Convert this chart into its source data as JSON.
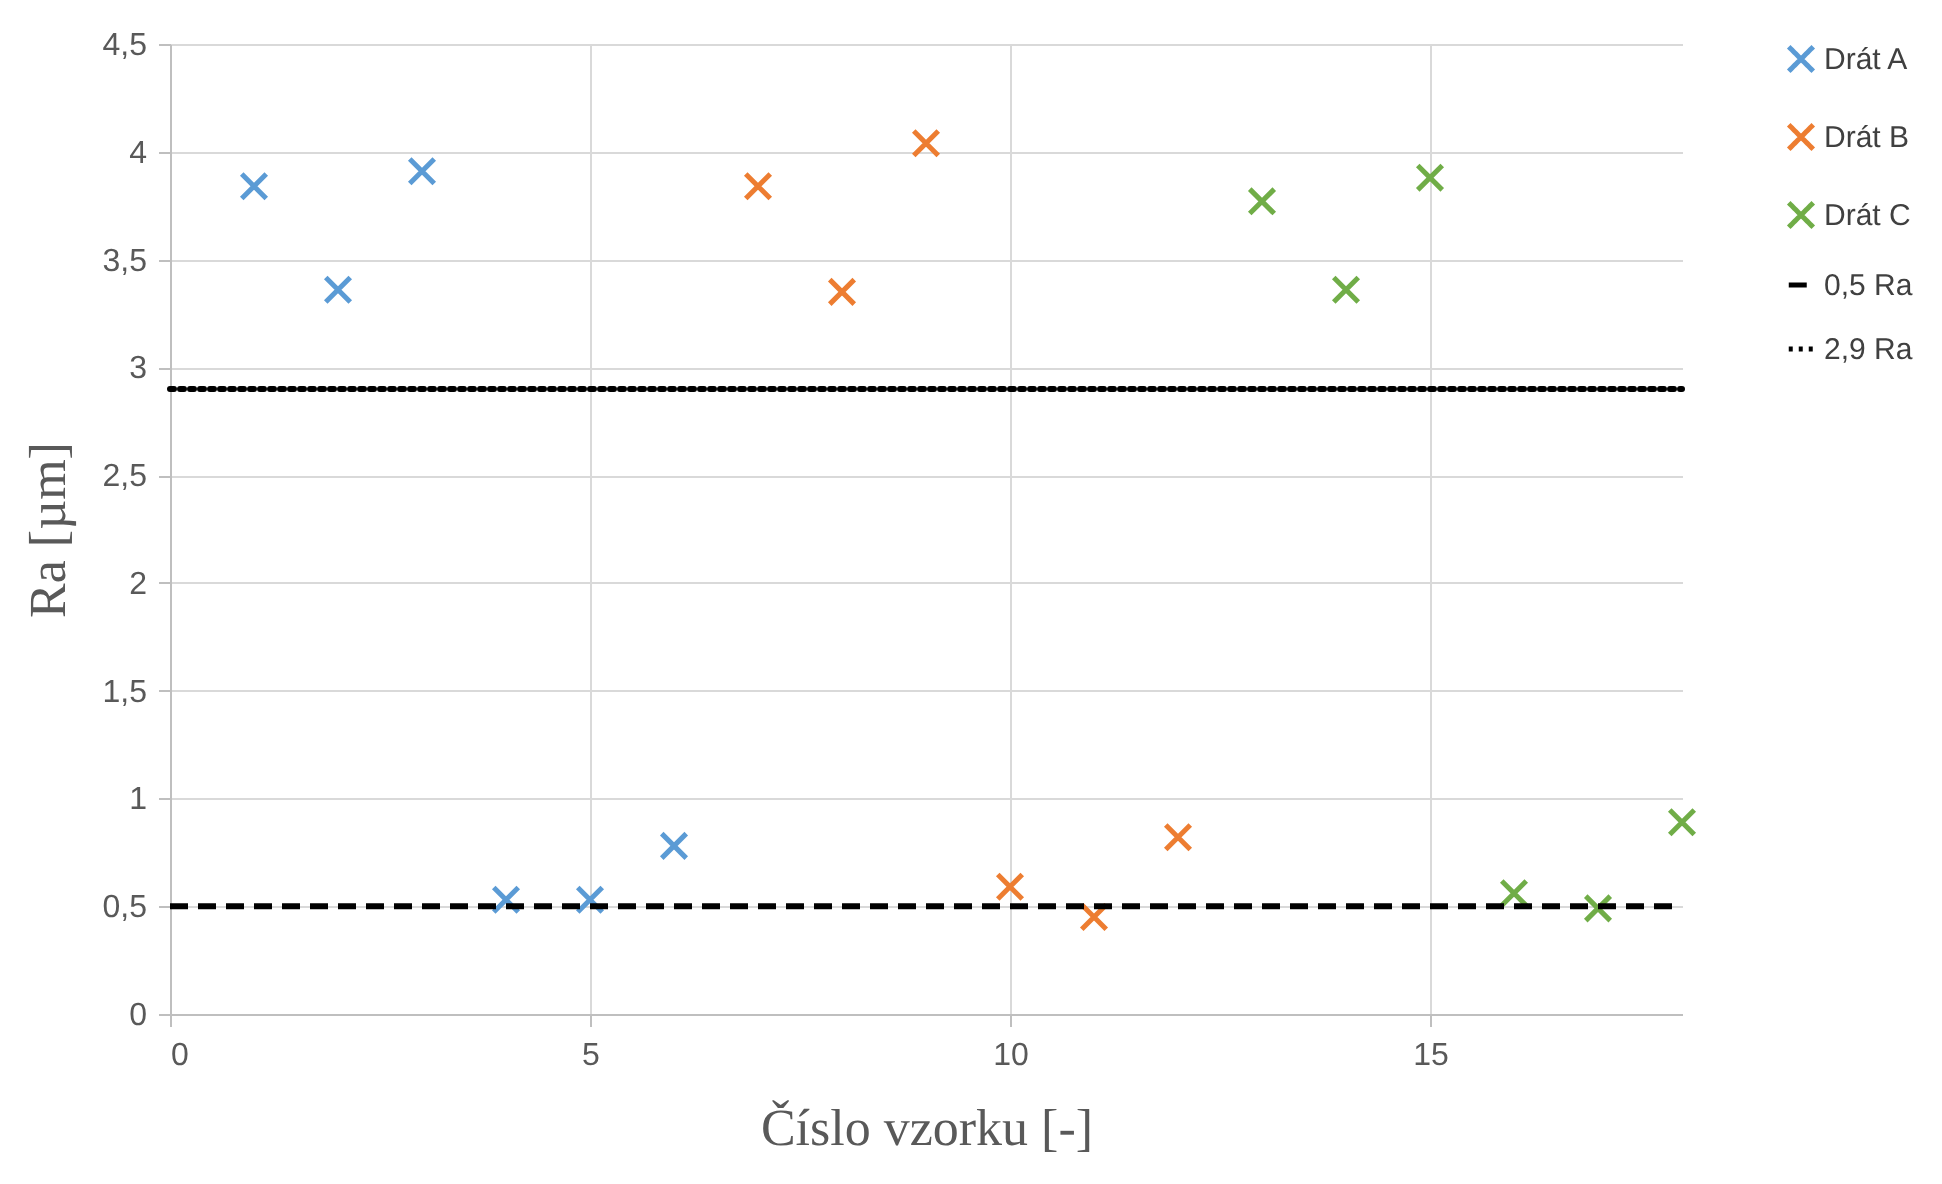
{
  "chart_data": {
    "type": "scatter",
    "xlabel": "Číslo vzorku [-]",
    "ylabel": "Ra [µm]",
    "series": [
      {
        "name": "Drát A",
        "color": "#5b9bd5",
        "x": [
          1,
          2,
          3,
          4,
          5,
          6
        ],
        "values": [
          3.84,
          3.36,
          3.91,
          0.53,
          0.53,
          0.78
        ]
      },
      {
        "name": "Drát B",
        "color": "#ed7d31",
        "x": [
          7,
          8,
          9,
          10,
          11,
          12
        ],
        "values": [
          3.84,
          3.35,
          4.04,
          0.59,
          0.45,
          0.82
        ]
      },
      {
        "name": "Drát C",
        "color": "#70ad47",
        "x": [
          13,
          14,
          15,
          16,
          17,
          18
        ],
        "values": [
          3.77,
          3.36,
          3.88,
          0.56,
          0.49,
          0.89
        ]
      },
      {
        "name": "0,5 Ra",
        "type": "line",
        "color": "#000000",
        "line_style": "dashed",
        "marker": "none",
        "x": [
          0,
          18
        ],
        "values": [
          0.5,
          0.5
        ]
      },
      {
        "name": "2,9 Ra",
        "type": "line",
        "color": "#000000",
        "line_style": "dotted",
        "marker": "none",
        "x": [
          0,
          18
        ],
        "values": [
          2.9,
          2.9
        ]
      }
    ],
    "xlim": [
      0,
      18
    ],
    "xticks": [
      0,
      5,
      10,
      15
    ],
    "ylim": [
      0,
      4.5
    ],
    "yticks": [
      0,
      {
        "value": 0.5,
        "label": "0,5"
      },
      1,
      {
        "value": 1.5,
        "label": "1,5"
      },
      2,
      {
        "value": 2.5,
        "label": "2,5"
      },
      3,
      {
        "value": 3.5,
        "label": "3,5"
      },
      4,
      {
        "value": 4.5,
        "label": "4,5"
      }
    ],
    "grid": true,
    "legend": "right",
    "marker": "cross"
  }
}
